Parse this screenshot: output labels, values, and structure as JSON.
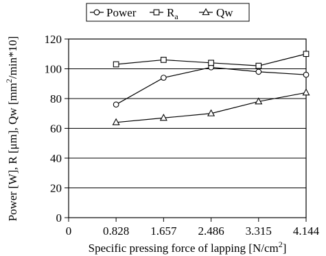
{
  "chart_data": {
    "type": "line",
    "xlabel": "Specific pressing force of lapping [N/cm",
    "xlabel_sup": "2",
    "xlabel_end": "]",
    "ylabel": "Power [W], R  [μm], Qw [mm",
    "ylabel_sup": "2",
    "ylabel_end": "/min*10]",
    "x": [
      0.828,
      1.657,
      2.486,
      3.315,
      4.144
    ],
    "xticks": [
      "0",
      "0.828",
      "1.657",
      "2.486",
      "3.315",
      "4.144"
    ],
    "xlim": [
      0,
      4.144
    ],
    "ylim": [
      0,
      120
    ],
    "yticks": [
      "0",
      "20",
      "40",
      "60",
      "80",
      "100",
      "120"
    ],
    "grid": "horizontal",
    "legend_position": "top",
    "series": [
      {
        "name": "Power",
        "marker": "circle",
        "values": [
          76,
          94,
          101,
          98,
          96
        ]
      },
      {
        "name": "R",
        "name_sub": "a",
        "marker": "square",
        "values": [
          103,
          106,
          104,
          102,
          110
        ]
      },
      {
        "name": "Qw",
        "marker": "triangle",
        "values": [
          64,
          67,
          70,
          78,
          84
        ]
      }
    ]
  }
}
